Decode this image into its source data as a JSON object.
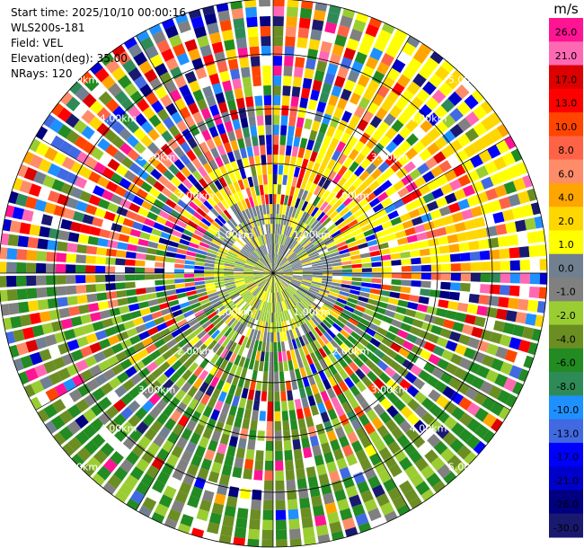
{
  "header": {
    "start_time": "Start time: 2025/10/10 00:00:16",
    "station": "WLS200s-181",
    "field": "Field: VEL",
    "elevation": "Elevation(deg): 35.00",
    "nrays": "NRays: 120"
  },
  "chart_data": {
    "type": "heatmap",
    "subtype": "polar-ppi",
    "field": "VEL",
    "units": "m/s",
    "nrays": 120,
    "range_rings_km": [
      1,
      2,
      3,
      4,
      5
    ],
    "ring_labels": [
      "1.00km",
      "2.00km",
      "3.00km",
      "4.00km",
      "5.00km"
    ],
    "colorbar": {
      "title": "m/s",
      "ticks": [
        "26.0",
        "21.0",
        "17.0",
        "13.0",
        "10.0",
        "8.0",
        "6.0",
        "4.0",
        "2.0",
        "1.0",
        "0.0",
        "-1.0",
        "-2.0",
        "-4.0",
        "-6.0",
        "-8.0",
        "-10.0",
        "-13.0",
        "-17.0",
        "-21.0",
        "-26.0",
        "-30.0"
      ],
      "colors": [
        "#ff1493",
        "#ff69b4",
        "#dc0000",
        "#ff0000",
        "#ff4500",
        "#ff6347",
        "#ff8c69",
        "#ffa500",
        "#ffd700",
        "#ffff00",
        "#708090",
        "#808080",
        "#9acd32",
        "#6b8e23",
        "#228b22",
        "#2e8b57",
        "#1e90ff",
        "#4169e1",
        "#0000ff",
        "#0000cd",
        "#000080",
        "#191970"
      ]
    },
    "grid": true
  }
}
